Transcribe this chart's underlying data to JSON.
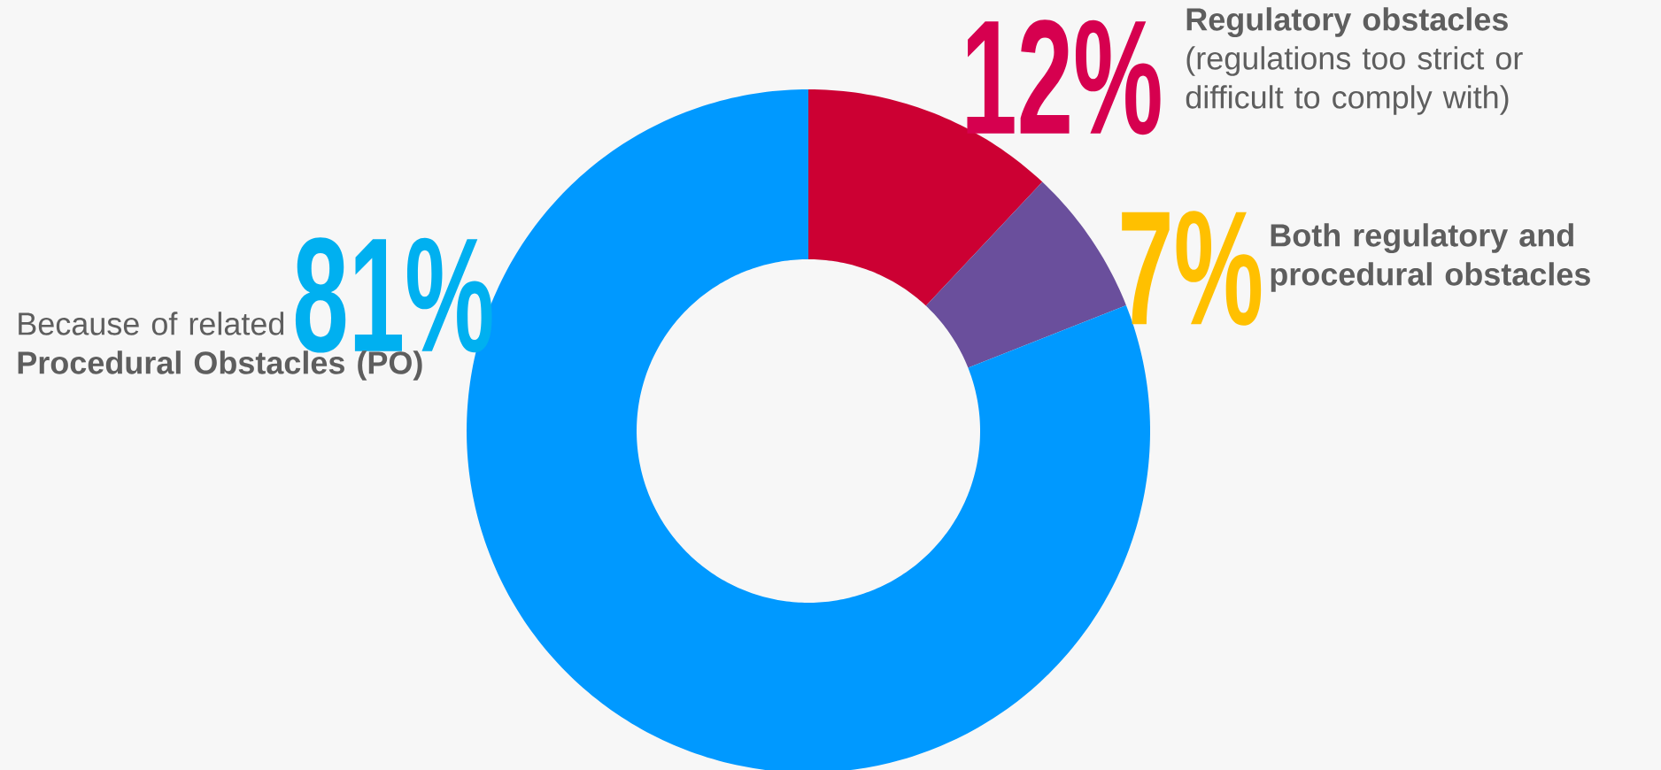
{
  "chart_data": {
    "type": "donut",
    "categories": [
      "**Regulatory obstacles** (regulations too strict or difficult to comply with)",
      "Both regulatory and procedural obstacles",
      "Because of related **Procedural Obstacles (PO)**"
    ],
    "values": [
      12,
      7,
      81
    ],
    "colors": [
      "#cc0033",
      "#6a4f9c",
      "#0099ff"
    ],
    "value_labels": [
      "12%",
      "7%",
      "81%"
    ]
  }
}
